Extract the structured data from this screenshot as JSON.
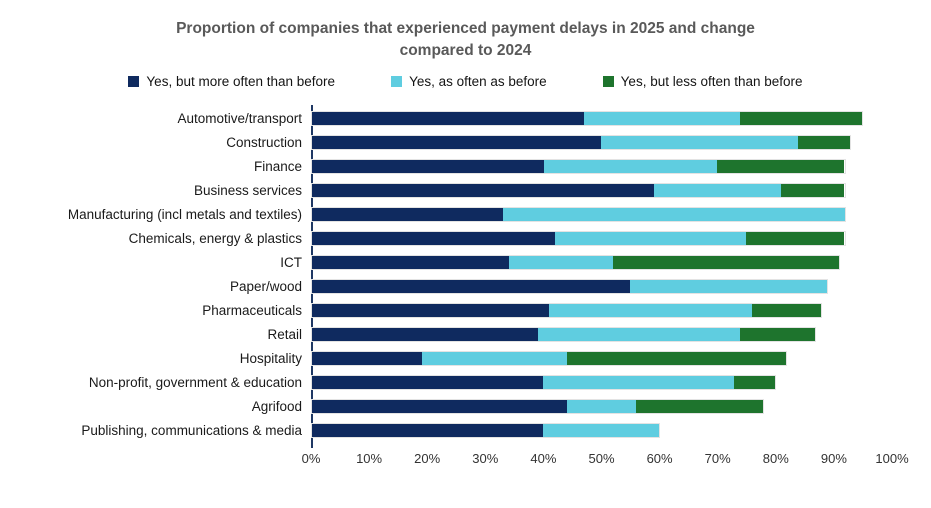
{
  "title": {
    "line1": "Proportion of companies that experienced payment delays in 2025 and change",
    "line2": "compared to 2024"
  },
  "colors": {
    "more_often": "#0f2a5f",
    "as_often": "#5fcde0",
    "less_often": "#1e742d",
    "title_text": "#595959",
    "axis_line": "#1f3864",
    "tick_text": "#333333",
    "bar_outline": "#e3e3e3"
  },
  "chart_data": {
    "type": "bar",
    "orientation": "horizontal",
    "stacked": true,
    "grid": false,
    "legend_position": "top",
    "title": "Proportion of companies that experienced payment delays in 2025 and change compared to 2024",
    "xlabel": "",
    "ylabel": "",
    "xlim": [
      0,
      100
    ],
    "x_ticks": [
      "0%",
      "10%",
      "20%",
      "30%",
      "40%",
      "50%",
      "60%",
      "70%",
      "80%",
      "90%",
      "100%"
    ],
    "categories": [
      "Automotive/transport",
      "Construction",
      "Finance",
      "Business services",
      "Manufacturing (incl metals and textiles)",
      "Chemicals, energy & plastics",
      "ICT",
      "Paper/wood",
      "Pharmaceuticals",
      "Retail",
      "Hospitality",
      "Non-profit, government & education",
      "Agrifood",
      "Publishing, communications & media"
    ],
    "series": [
      {
        "name": "Yes, but more often than before",
        "color": "#0f2a5f",
        "values": [
          47,
          50,
          40,
          59,
          33,
          42,
          34,
          55,
          41,
          39,
          19,
          40,
          44,
          40
        ]
      },
      {
        "name": "Yes, as often as before",
        "color": "#5fcde0",
        "values": [
          27,
          34,
          30,
          22,
          59,
          33,
          18,
          34,
          35,
          35,
          25,
          33,
          12,
          20
        ]
      },
      {
        "name": "Yes, but less often than before",
        "color": "#1e742d",
        "values": [
          21,
          9,
          22,
          11,
          0,
          17,
          39,
          0,
          12,
          13,
          38,
          7,
          22,
          0
        ]
      }
    ]
  }
}
